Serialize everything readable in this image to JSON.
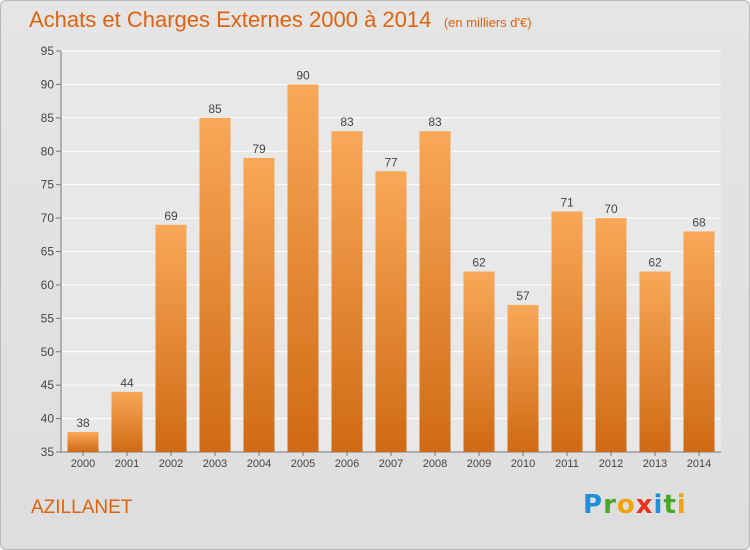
{
  "title": "Achats et Charges Externes 2000 à 2014",
  "subtitle": "(en milliers d'€)",
  "place": "AZILLANET",
  "logo": {
    "letters": [
      {
        "ch": "P",
        "color": "#1e8fd8"
      },
      {
        "ch": "r",
        "color": "#49a82a"
      },
      {
        "ch": "o",
        "color": "#f2a20f"
      },
      {
        "ch": "x",
        "color": "#e8321e"
      },
      {
        "ch": "i",
        "color": "#1e8fd8"
      },
      {
        "ch": "t",
        "color": "#49a82a"
      },
      {
        "ch": "i",
        "color": "#f2a20f"
      }
    ]
  },
  "colors": {
    "accent": "#e0620e",
    "bar_top": "#f8a858",
    "bar_bottom": "#d06a14",
    "grid": "#ffffff",
    "label": "#444444"
  },
  "chart_data": {
    "type": "bar",
    "title": "Achats et Charges Externes 2000 à 2014",
    "subtitle": "(en milliers d'€)",
    "categories": [
      "2000",
      "2001",
      "2002",
      "2003",
      "2004",
      "2005",
      "2006",
      "2007",
      "2008",
      "2009",
      "2010",
      "2011",
      "2012",
      "2013",
      "2014"
    ],
    "values": [
      38,
      44,
      69,
      85,
      79,
      90,
      83,
      77,
      83,
      62,
      57,
      71,
      70,
      62,
      68
    ],
    "ylim": [
      35,
      95
    ],
    "yticks": [
      35,
      40,
      45,
      50,
      55,
      60,
      65,
      70,
      75,
      80,
      85,
      90,
      95
    ],
    "grid": true,
    "data_labels": true
  }
}
